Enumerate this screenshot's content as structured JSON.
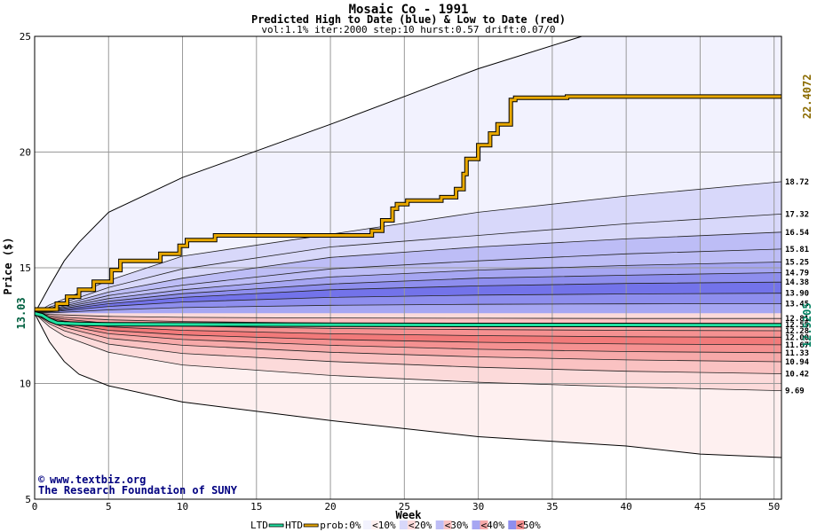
{
  "chart_data": {
    "type": "area",
    "title": "Mosaic Co - 1991",
    "subtitle": "Predicted High to Date (blue) &  Low to Date (red)",
    "params": "vol:1.1% iter:2000 step:10 hurst:0.57 drift:0.07/0",
    "xlabel": "Week",
    "ylabel": "Price ($)",
    "xlim": [
      0,
      50.5
    ],
    "ylim": [
      5,
      25
    ],
    "x_ticks": [
      0,
      5,
      10,
      15,
      20,
      25,
      30,
      35,
      40,
      45,
      50
    ],
    "y_ticks": [
      5,
      10,
      15,
      20,
      25
    ],
    "grid": true,
    "start_price": 13.03,
    "start_price_label": "13.03",
    "colors": {
      "prob0": "#f2f2fe",
      "prob10": "#d8d8fa",
      "prob20": "#bdbdf6",
      "prob30": "#a6a6f2",
      "prob40": "#8e8eee",
      "prob50": "#7373ea",
      "red0": "#fef0f0",
      "red10": "#fcdada",
      "red20": "#fac2c2",
      "red30": "#f7a9a9",
      "red40": "#f59191",
      "red50": "#f27a7a",
      "htd": "#e8a800",
      "ltd": "#20e0a0",
      "end_high_color": "#8b6b00",
      "end_low_color": "#008060"
    },
    "weeks": [
      0,
      1,
      2,
      5,
      10,
      20,
      30,
      40,
      50.5
    ],
    "high_quantiles": [
      {
        "label": "18.72",
        "values": [
          13.03,
          13.4,
          13.65,
          14.45,
          15.5,
          16.45,
          17.4,
          18.1,
          18.72
        ]
      },
      {
        "label": "17.32",
        "values": [
          13.03,
          13.3,
          13.5,
          14.15,
          14.95,
          15.9,
          16.4,
          16.9,
          17.32
        ]
      },
      {
        "label": "16.54",
        "values": [
          13.03,
          13.25,
          13.42,
          13.95,
          14.55,
          15.45,
          15.9,
          16.25,
          16.54
        ]
      },
      {
        "label": "15.81",
        "values": [
          13.03,
          13.2,
          13.35,
          13.8,
          14.25,
          14.95,
          15.3,
          15.6,
          15.81
        ]
      },
      {
        "label": "15.25",
        "values": [
          13.03,
          13.17,
          13.3,
          13.67,
          14.05,
          14.6,
          14.9,
          15.1,
          15.25
        ]
      },
      {
        "label": "14.79",
        "values": [
          13.03,
          13.14,
          13.25,
          13.55,
          13.88,
          14.3,
          14.55,
          14.68,
          14.79
        ]
      },
      {
        "label": "14.38",
        "values": [
          13.03,
          13.12,
          13.2,
          13.45,
          13.72,
          14.05,
          14.22,
          14.32,
          14.38
        ]
      },
      {
        "label": "13.90",
        "values": [
          13.03,
          13.09,
          13.15,
          13.33,
          13.52,
          13.72,
          13.82,
          13.87,
          13.9
        ]
      },
      {
        "label": "13.45",
        "values": [
          13.03,
          13.05,
          13.08,
          13.18,
          13.28,
          13.38,
          13.42,
          13.44,
          13.45
        ]
      },
      {
        "label": "",
        "values": [
          13.03,
          13.2,
          13.5,
          14.3,
          15.2,
          16.3,
          16.6,
          16.9,
          17.3
        ]
      }
    ],
    "low_quantiles": [
      {
        "label": "12.81",
        "values": [
          13.03,
          12.99,
          12.96,
          12.9,
          12.86,
          12.83,
          12.82,
          12.81,
          12.81
        ]
      },
      {
        "label": "12.55",
        "values": [
          13.03,
          12.93,
          12.86,
          12.75,
          12.68,
          12.61,
          12.58,
          12.56,
          12.55
        ]
      },
      {
        "label": "12.28",
        "values": [
          13.03,
          12.87,
          12.78,
          12.6,
          12.48,
          12.38,
          12.33,
          12.3,
          12.28
        ]
      },
      {
        "label": "12.00",
        "values": [
          13.03,
          12.82,
          12.7,
          12.45,
          12.3,
          12.15,
          12.07,
          12.02,
          12.0
        ]
      },
      {
        "label": "11.67",
        "values": [
          13.03,
          12.77,
          12.6,
          12.3,
          12.1,
          11.9,
          11.78,
          11.71,
          11.67
        ]
      },
      {
        "label": "11.33",
        "values": [
          13.03,
          12.72,
          12.52,
          12.15,
          11.9,
          11.65,
          11.48,
          11.38,
          11.33
        ]
      },
      {
        "label": "10.94",
        "values": [
          13.03,
          12.66,
          12.42,
          11.95,
          11.65,
          11.35,
          11.15,
          11.02,
          10.94
        ]
      },
      {
        "label": "10.42",
        "values": [
          13.03,
          12.58,
          12.28,
          11.7,
          11.3,
          10.95,
          10.7,
          10.53,
          10.42
        ]
      },
      {
        "label": "9.69",
        "values": [
          13.03,
          12.45,
          12.05,
          11.35,
          10.8,
          10.35,
          10.05,
          9.85,
          9.69
        ]
      }
    ],
    "outer_high": {
      "x": [
        0,
        1,
        2,
        3,
        5,
        10,
        20,
        30,
        37
      ],
      "y": [
        13.03,
        14.2,
        15.3,
        16.1,
        17.4,
        18.9,
        21.2,
        23.6,
        25.0
      ]
    },
    "outer_low": {
      "x": [
        0,
        1,
        2,
        3,
        5,
        10,
        20,
        30,
        40,
        45,
        50.5
      ],
      "y": [
        13.03,
        11.8,
        10.95,
        10.4,
        9.9,
        9.2,
        8.4,
        7.7,
        7.3,
        6.95,
        6.8
      ]
    },
    "htd_series": {
      "name": "HTD",
      "x": [
        0,
        1.5,
        1.5,
        2.2,
        2.2,
        3,
        3,
        4,
        4,
        5.2,
        5.2,
        5.8,
        5.8,
        8.5,
        8.5,
        9.8,
        9.8,
        10.3,
        10.3,
        12.2,
        12.2,
        22.8,
        22.8,
        23.5,
        23.5,
        24.2,
        24.2,
        24.5,
        24.5,
        25.2,
        25.2,
        27.5,
        27.5,
        28.5,
        28.5,
        29,
        29,
        29.2,
        29.2,
        30,
        30,
        30.8,
        30.8,
        31.3,
        31.3,
        32.2,
        32.2,
        32.5,
        32.5,
        36,
        36,
        50.5
      ],
      "y": [
        13.2,
        13.2,
        13.45,
        13.45,
        13.75,
        13.75,
        14.05,
        14.05,
        14.4,
        14.4,
        14.9,
        14.9,
        15.3,
        15.3,
        15.6,
        15.6,
        15.95,
        15.95,
        16.2,
        16.2,
        16.4,
        16.4,
        16.6,
        16.6,
        17.05,
        17.05,
        17.55,
        17.55,
        17.75,
        17.75,
        17.9,
        17.9,
        18.05,
        18.05,
        18.4,
        18.4,
        19.05,
        19.05,
        19.7,
        19.7,
        20.3,
        20.3,
        20.8,
        20.8,
        21.2,
        21.2,
        22.25,
        22.25,
        22.35,
        22.35,
        22.4,
        22.4
      ]
    },
    "ltd_series": {
      "name": "LTD",
      "x": [
        0,
        0.5,
        1,
        1.5,
        2,
        3,
        5,
        10,
        20,
        30,
        40,
        50.5
      ],
      "y": [
        13.03,
        12.95,
        12.75,
        12.62,
        12.6,
        12.58,
        12.56,
        12.55,
        12.54,
        12.53,
        12.53,
        12.52
      ]
    },
    "end_high_label": "22.4072",
    "end_low_label": "12.5205",
    "credit": {
      "line1": "www.textbiz.org",
      "line2": "The Research Foundation of SUNY"
    },
    "legend": [
      {
        "kind": "line",
        "label": "LTD",
        "color": "#20e0a0"
      },
      {
        "kind": "line",
        "label": "HTD",
        "color": "#e8a800"
      },
      {
        "kind": "text",
        "label": "prob:0%"
      },
      {
        "kind": "swatch",
        "label": "<10%",
        "colors": [
          "#f2f2fe",
          "#fef0f0"
        ]
      },
      {
        "kind": "swatch",
        "label": "<20%",
        "colors": [
          "#d8d8fa",
          "#fcdada"
        ]
      },
      {
        "kind": "swatch",
        "label": "<30%",
        "colors": [
          "#bdbdf6",
          "#fac2c2"
        ]
      },
      {
        "kind": "swatch",
        "label": "<40%",
        "colors": [
          "#a6a6f2",
          "#f7a9a9"
        ]
      },
      {
        "kind": "swatch",
        "label": "<50%",
        "colors": [
          "#8e8eee",
          "#f59191"
        ]
      }
    ]
  }
}
